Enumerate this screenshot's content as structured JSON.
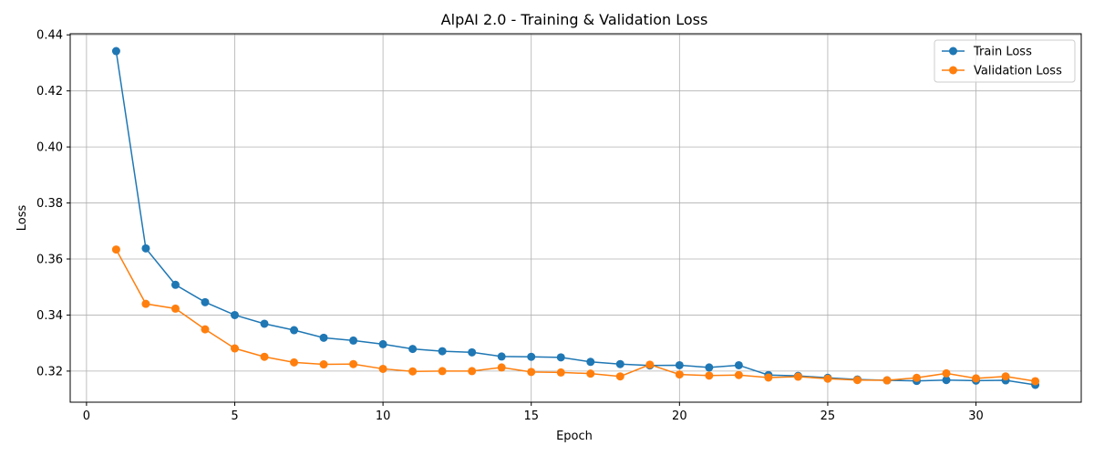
{
  "chart_data": {
    "type": "line",
    "title": "AlpAI 2.0 - Training & Validation Loss",
    "xlabel": "Epoch",
    "ylabel": "Loss",
    "xlim": [
      -0.55,
      33.55
    ],
    "ylim": [
      0.3089,
      0.4404
    ],
    "xticks": [
      0,
      5,
      10,
      15,
      20,
      25,
      30
    ],
    "yticks": [
      0.32,
      0.34,
      0.36,
      0.38,
      0.4,
      0.42,
      0.44
    ],
    "ytick_labels": [
      "0.32",
      "0.34",
      "0.36",
      "0.38",
      "0.40",
      "0.42",
      "0.44"
    ],
    "grid": true,
    "legend": "top-right",
    "x": [
      1,
      2,
      3,
      4,
      5,
      6,
      7,
      8,
      9,
      10,
      11,
      12,
      13,
      14,
      15,
      16,
      17,
      18,
      19,
      20,
      21,
      22,
      23,
      24,
      25,
      26,
      27,
      28,
      29,
      30,
      31,
      32
    ],
    "series": [
      {
        "name": "Train Loss",
        "color": "#1f77b4",
        "values": [
          0.4342,
          0.3638,
          0.3508,
          0.3446,
          0.34,
          0.3369,
          0.3346,
          0.3319,
          0.3309,
          0.3296,
          0.3279,
          0.3271,
          0.3267,
          0.3252,
          0.3251,
          0.3249,
          0.3233,
          0.3225,
          0.322,
          0.3221,
          0.3213,
          0.3221,
          0.3186,
          0.3183,
          0.3176,
          0.317,
          0.3167,
          0.3165,
          0.3168,
          0.3166,
          0.3167,
          0.3151
        ]
      },
      {
        "name": "Validation Loss",
        "color": "#ff7f0e",
        "values": [
          0.3634,
          0.344,
          0.3423,
          0.3349,
          0.3281,
          0.3251,
          0.3231,
          0.3224,
          0.3225,
          0.3208,
          0.3199,
          0.32,
          0.32,
          0.3213,
          0.3197,
          0.3195,
          0.3191,
          0.3181,
          0.3223,
          0.3188,
          0.3184,
          0.3186,
          0.3177,
          0.318,
          0.3173,
          0.3168,
          0.3167,
          0.3176,
          0.3192,
          0.3174,
          0.3181,
          0.3164
        ]
      }
    ]
  }
}
